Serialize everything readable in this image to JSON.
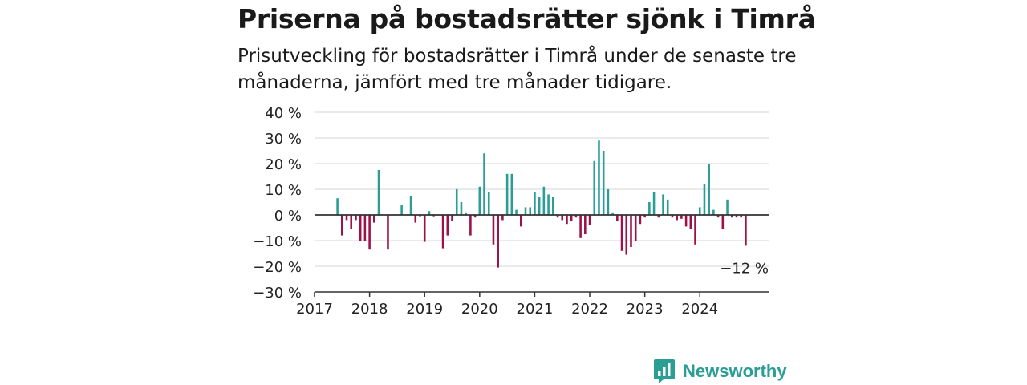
{
  "header": {
    "title": "Priserna på bostadsrätter sjönk i Timrå",
    "subtitle": "Prisutveckling för bostadsrätter i Timrå under de senaste tre månaderna, jämfört med tre månader tidigare."
  },
  "brand": {
    "name": "Newsworthy",
    "icon": "newsworthy-logo-icon",
    "color": "#2a9d95"
  },
  "chart_data": {
    "type": "bar",
    "title": "Priserna på bostadsrätter sjönk i Timrå",
    "subtitle": "Prisutveckling för bostadsrätter i Timrå under de senaste tre månaderna, jämfört med tre månader tidigare.",
    "xlabel": "",
    "ylabel": "",
    "ylim": [
      -30,
      40
    ],
    "yticks": [
      40,
      30,
      20,
      10,
      0,
      -10,
      -20,
      -30
    ],
    "ytick_labels": [
      "40 %",
      "30 %",
      "20 %",
      "10 %",
      "0 %",
      "−10 %",
      "−20 %",
      "−30 %"
    ],
    "xlim": [
      "2017-01",
      "2025-04"
    ],
    "xticks": [
      "2017",
      "2018",
      "2019",
      "2020",
      "2021",
      "2022",
      "2023",
      "2024"
    ],
    "grid": true,
    "colors": {
      "positive": "#2a9d95",
      "negative": "#9c1147",
      "axis": "#333333",
      "grid": "#dddddd"
    },
    "annotation": {
      "text": "−12 %",
      "month": "2024-11"
    },
    "x": [
      "2017-06",
      "2017-07",
      "2017-08",
      "2017-09",
      "2017-10",
      "2017-11",
      "2017-12",
      "2018-01",
      "2018-02",
      "2018-03",
      "2018-05",
      "2018-08",
      "2018-10",
      "2018-11",
      "2018-12",
      "2019-01",
      "2019-02",
      "2019-03",
      "2019-05",
      "2019-06",
      "2019-07",
      "2019-08",
      "2019-09",
      "2019-10",
      "2019-11",
      "2019-12",
      "2020-01",
      "2020-02",
      "2020-03",
      "2020-04",
      "2020-05",
      "2020-06",
      "2020-07",
      "2020-08",
      "2020-09",
      "2020-10",
      "2020-11",
      "2020-12",
      "2021-01",
      "2021-02",
      "2021-03",
      "2021-04",
      "2021-05",
      "2021-06",
      "2021-07",
      "2021-08",
      "2021-09",
      "2021-10",
      "2021-11",
      "2021-12",
      "2022-01",
      "2022-02",
      "2022-03",
      "2022-04",
      "2022-05",
      "2022-06",
      "2022-07",
      "2022-08",
      "2022-09",
      "2022-10",
      "2022-11",
      "2022-12",
      "2023-01",
      "2023-02",
      "2023-03",
      "2023-04",
      "2023-05",
      "2023-06",
      "2023-07",
      "2023-08",
      "2023-09",
      "2023-10",
      "2023-11",
      "2023-12",
      "2024-01",
      "2024-02",
      "2024-03",
      "2024-04",
      "2024-05",
      "2024-06",
      "2024-07",
      "2024-08",
      "2024-09",
      "2024-10",
      "2024-11"
    ],
    "values": [
      6.5,
      -8,
      -2,
      -5.5,
      -2,
      -10,
      -10,
      -13.5,
      -3,
      17.5,
      -13.5,
      4,
      7.5,
      -3,
      -0.5,
      -10.5,
      1.5,
      -0.5,
      -13,
      -8,
      -2.5,
      10,
      5,
      1,
      -8,
      -1,
      11,
      24,
      9,
      -11.5,
      -20.5,
      -2,
      16,
      16,
      2,
      -4.5,
      3,
      3,
      9,
      7,
      11,
      8,
      7,
      -1,
      -2,
      -3.5,
      -2.5,
      -1,
      -9,
      -7.5,
      -4,
      21,
      29,
      25,
      10,
      1,
      -2.5,
      -14,
      -15.5,
      -12.5,
      -10,
      -3.5,
      -1,
      5,
      9,
      -1,
      8,
      6,
      -1,
      -2,
      -1.5,
      -4.5,
      -5.5,
      -11.5,
      3,
      12,
      20,
      2,
      -1,
      -5.5,
      6,
      -1,
      -1,
      -1,
      -12
    ]
  }
}
